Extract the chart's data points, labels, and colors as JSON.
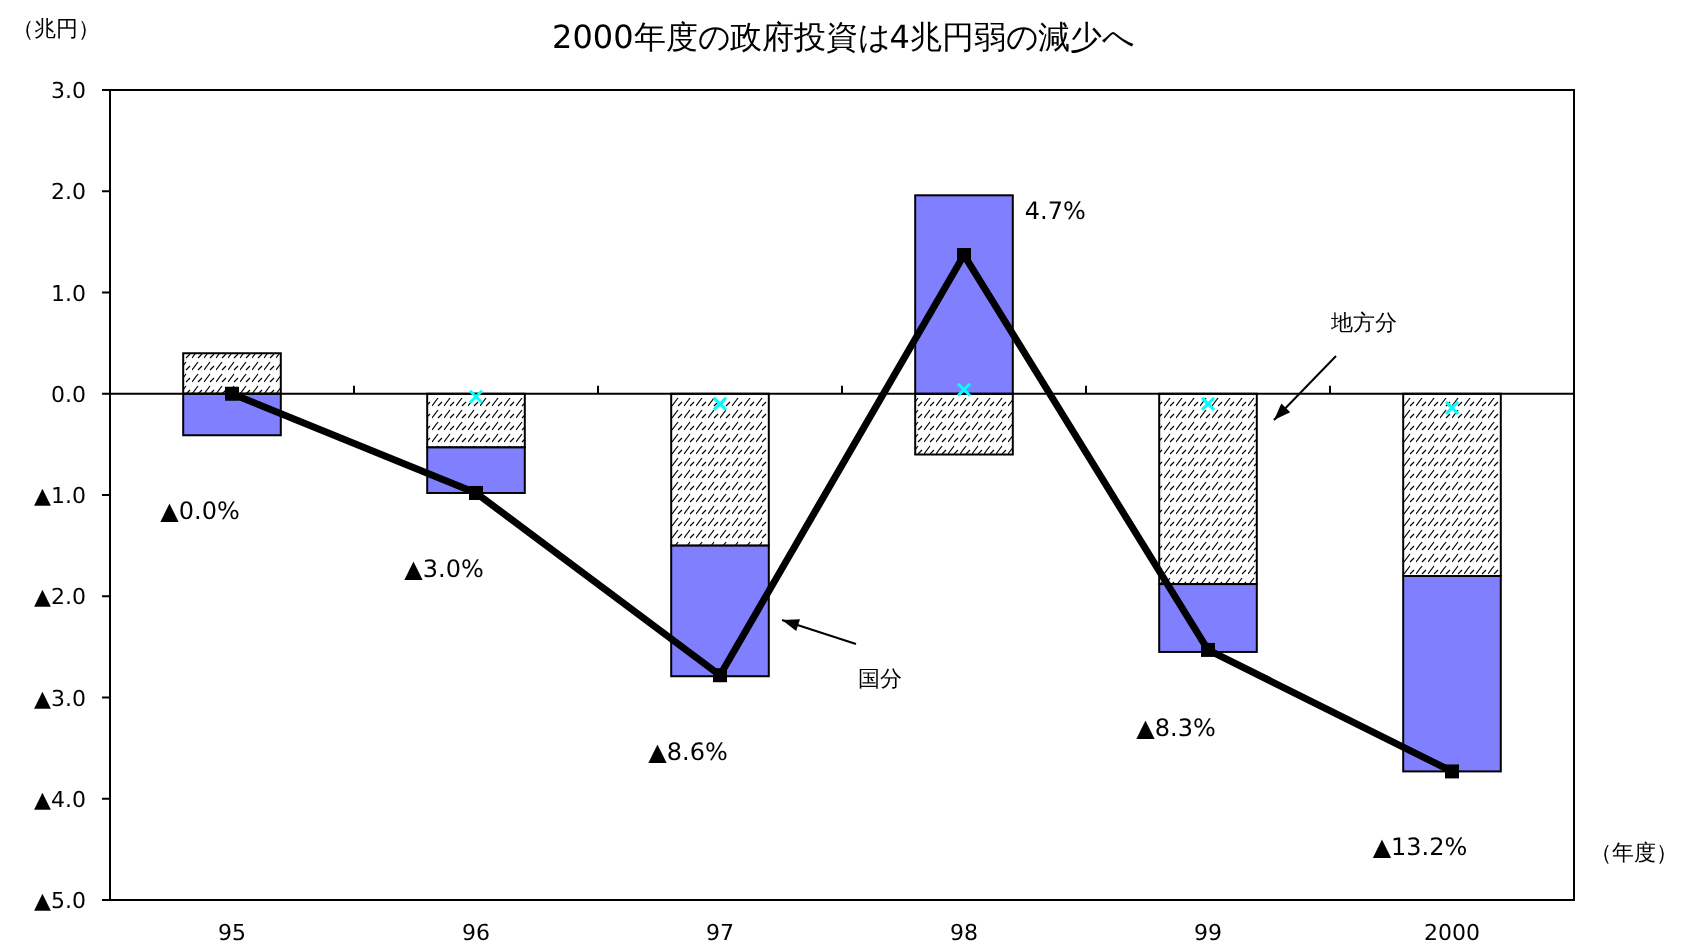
{
  "chart_data": {
    "type": "bar",
    "title": "2000年度の政府投資は4兆円弱の減少へ",
    "ylabel": "（兆円）",
    "xlabel": "（年度）",
    "categories": [
      "95",
      "96",
      "97",
      "98",
      "99",
      "2000"
    ],
    "stacked": true,
    "legend": false,
    "ylim": [
      -5,
      3
    ],
    "yticks": [
      {
        "value": -5,
        "label": "▲5.0"
      },
      {
        "value": -4,
        "label": "▲4.0"
      },
      {
        "value": -3,
        "label": "▲3.0"
      },
      {
        "value": -2,
        "label": "▲2.0"
      },
      {
        "value": -1,
        "label": "▲1.0"
      },
      {
        "value": 0,
        "label": "0.0"
      },
      {
        "value": 1,
        "label": "1.0"
      },
      {
        "value": 2,
        "label": "2.0"
      },
      {
        "value": 3,
        "label": "3.0"
      }
    ],
    "series": [
      {
        "color": "#000000",
        "values": [
          0.4,
          -0.53,
          -1.5,
          -0.6,
          -1.88,
          -1.8
        ]
      },
      {
        "color": "#8080ff",
        "values": [
          -0.41,
          -0.45,
          -1.29,
          1.96,
          -0.67,
          -1.93
        ]
      },
      {
        "type": "scatter",
        "color": "#00ffff",
        "marker": "cross",
        "values": [
          0.0,
          -0.03,
          -0.1,
          0.04,
          -0.1,
          -0.14
        ]
      },
      {
        "type": "line",
        "color": "#000000",
        "marker": "square",
        "values": [
          0.0,
          -0.98,
          -2.78,
          1.37,
          -2.53,
          -3.73
        ]
      }
    ],
    "annotations": [
      "▲0.0%",
      "▲3.0%",
      "▲8.6%",
      "4.7%",
      "▲8.3%",
      "▲13.2%",
      "地方分",
      "国分"
    ]
  }
}
